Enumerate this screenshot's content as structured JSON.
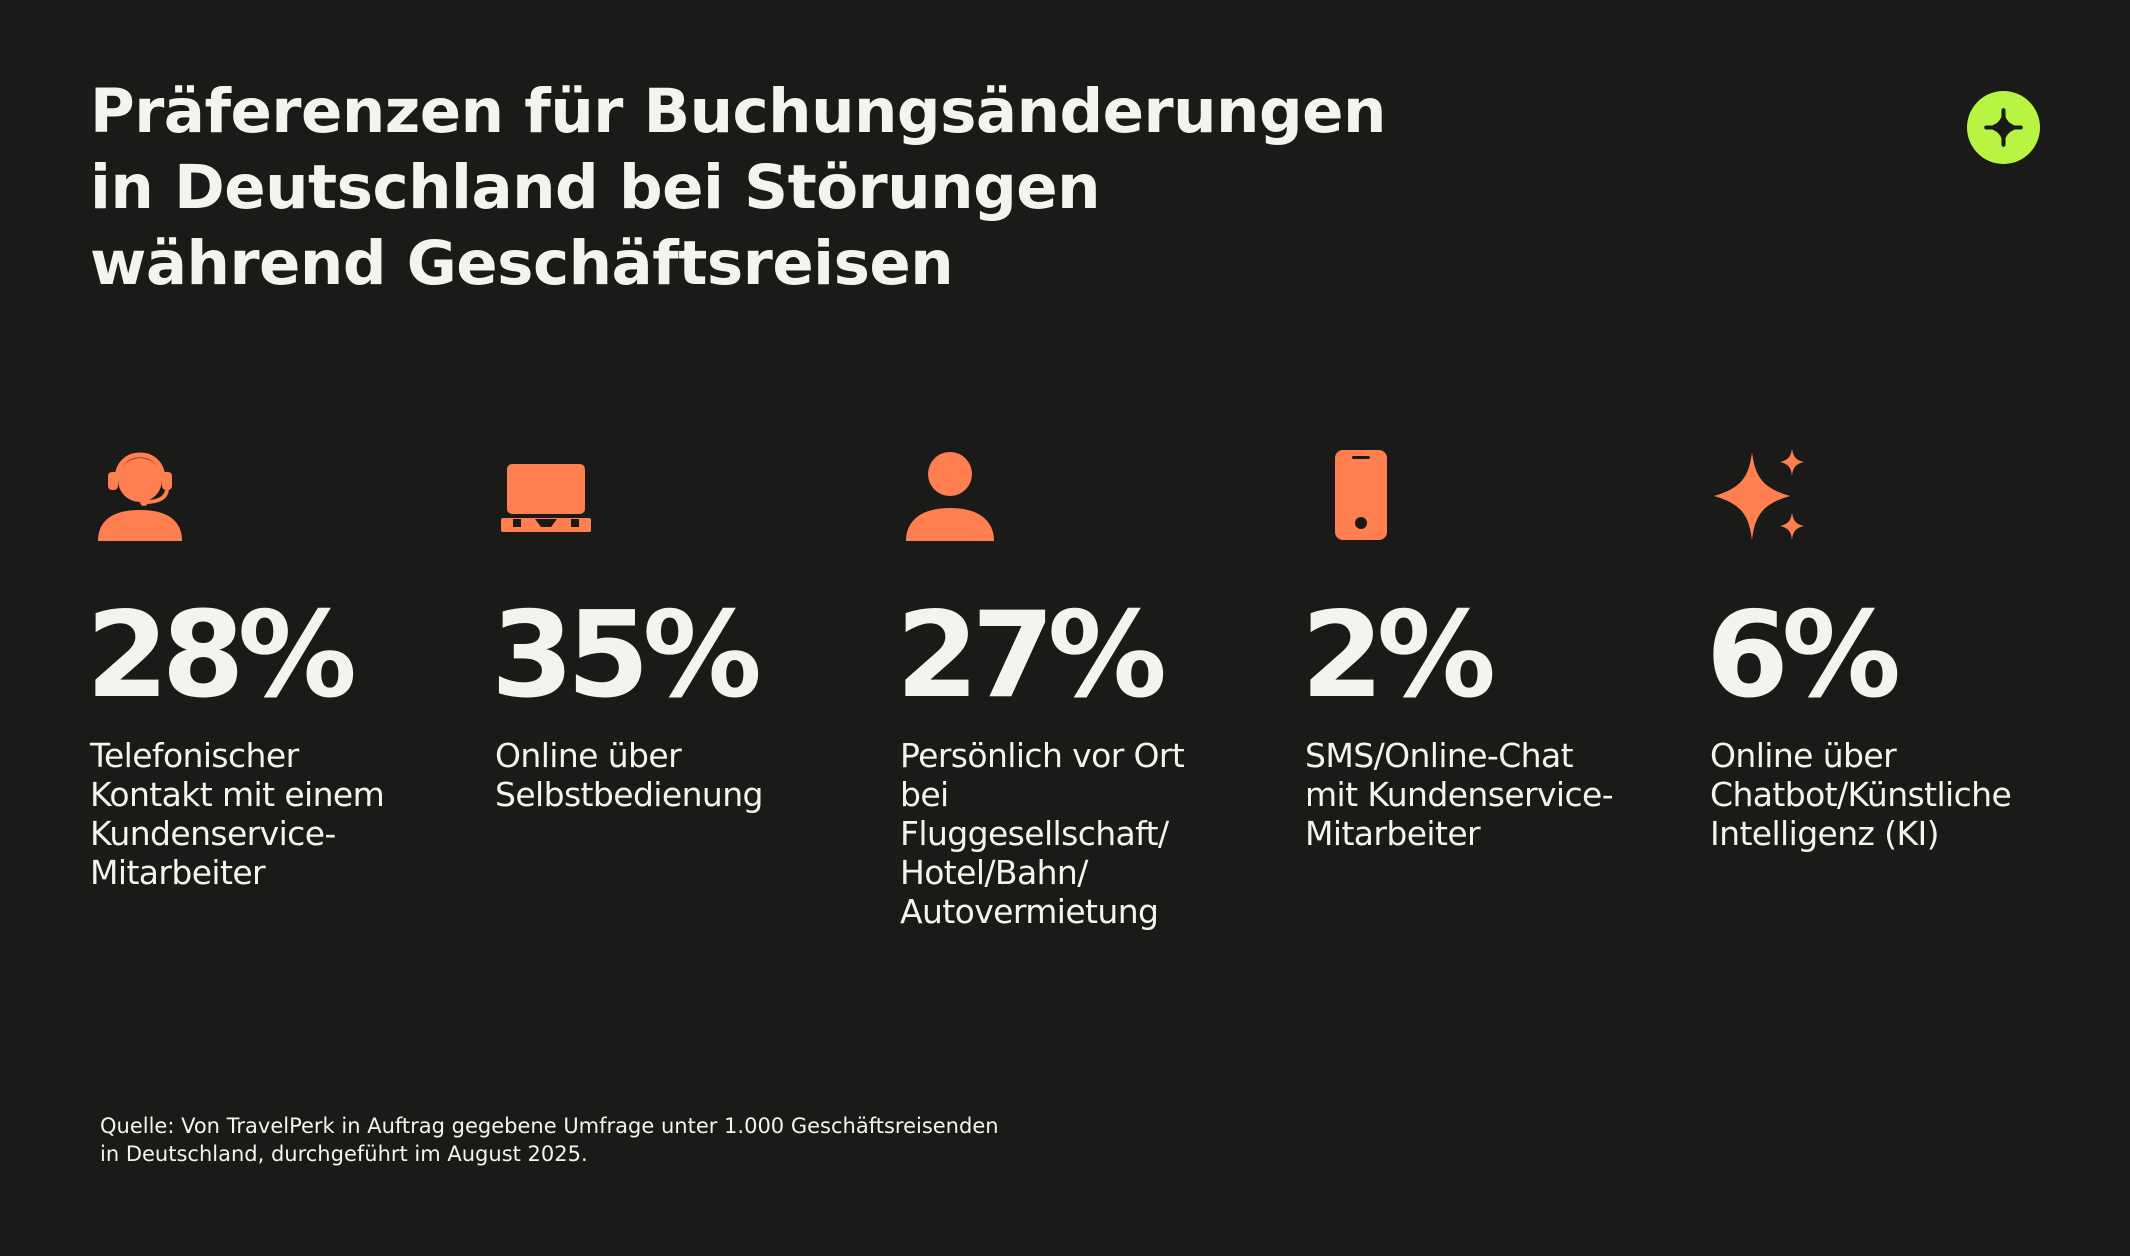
{
  "title": {
    "line1": "Präferenzen für Buchungsänderungen",
    "line2": "in Deutschland bei Störungen",
    "line3": "während Geschäftsreisen"
  },
  "colors": {
    "background": "#1a1a18",
    "accent_icon": "#ff7f50",
    "logo": "#b8f542",
    "text": "#f5f3ee"
  },
  "logo_icon": "plus-logo-icon",
  "stats": [
    {
      "icon": "headset-agent-icon",
      "value": "28%",
      "label": "Telefonischer\nKontakt mit einem\nKundenservice-\nMitarbeiter"
    },
    {
      "icon": "laptop-icon",
      "value": "35%",
      "label": "Online über\nSelbstbedienung"
    },
    {
      "icon": "person-icon",
      "value": "27%",
      "label": "Persönlich vor Ort\nbei\nFluggesellschaft/\nHotel/Bahn/\nAutovermietung"
    },
    {
      "icon": "smartphone-icon",
      "value": "2%",
      "label": "SMS/Online-Chat\nmit Kundenservice-\nMitarbeiter"
    },
    {
      "icon": "sparkle-ai-icon",
      "value": "6%",
      "label": "Online über\nChatbot/Künstliche\nIntelligenz (KI)"
    }
  ],
  "source": "Quelle: Von TravelPerk in Auftrag gegebene Umfrage unter 1.000 Geschäftsreisenden\nin Deutschland, durchgeführt im August 2025."
}
